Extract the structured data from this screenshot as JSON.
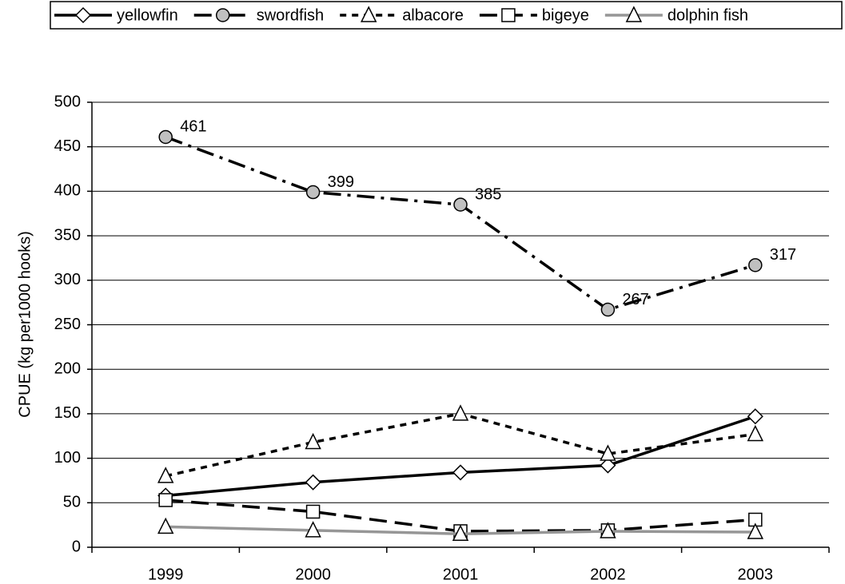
{
  "chart_data": {
    "type": "line",
    "y_label": "CPUE (kg per1000 hooks)",
    "categories": [
      "1999",
      "2000",
      "2001",
      "2002",
      "2003"
    ],
    "series": [
      {
        "name": "yellowfin",
        "color": "#000000",
        "dash": "solid",
        "marker": "diamond",
        "marker_fill": "#ffffff",
        "values": [
          58,
          73,
          84,
          92,
          147
        ]
      },
      {
        "name": "swordfish",
        "color": "#000000",
        "dash": "dash-dot",
        "marker": "circle",
        "marker_fill": "#c0c0c0",
        "values": [
          461,
          399,
          385,
          267,
          317
        ],
        "data_labels": true
      },
      {
        "name": "albacore",
        "color": "#000000",
        "dash": "short-dash",
        "marker": "triangle",
        "marker_fill": "#ffffff",
        "values": [
          80,
          118,
          150,
          105,
          127
        ]
      },
      {
        "name": "bigeye",
        "color": "#000000",
        "dash": "long-dash",
        "marker": "square",
        "marker_fill": "#ffffff",
        "values": [
          53,
          40,
          18,
          19,
          31
        ]
      },
      {
        "name": "dolphin fish",
        "color": "#969696",
        "dash": "solid",
        "marker": "triangle",
        "marker_fill": "#ffffff",
        "values": [
          23,
          19,
          15,
          18,
          17
        ]
      }
    ],
    "ylim": [
      0,
      500
    ],
    "yticks": [
      0,
      50,
      100,
      150,
      200,
      250,
      300,
      350,
      400,
      450,
      500
    ],
    "grid": true,
    "legend": "top"
  }
}
